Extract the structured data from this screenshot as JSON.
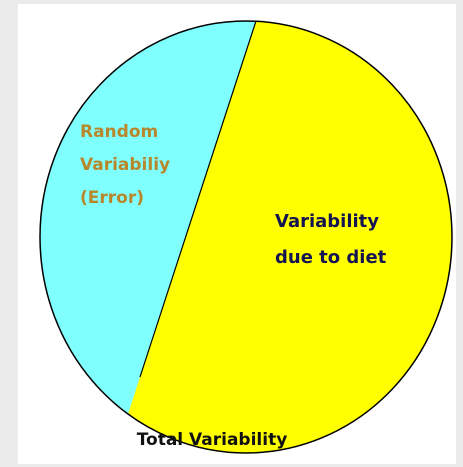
{
  "pie_regions": {
    "left": {
      "lines": [
        "Random",
        "Variabiliy",
        "(Error)"
      ]
    },
    "right": {
      "lines": [
        "Variability",
        "due to diet"
      ]
    }
  },
  "caption": "Total Variability"
}
